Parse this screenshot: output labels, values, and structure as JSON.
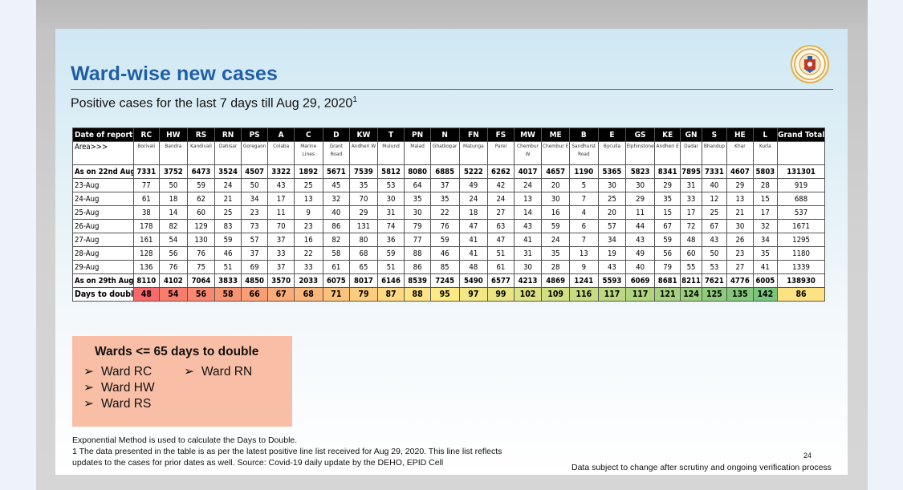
{
  "slide": {
    "title": "Ward-wise new cases",
    "subtitle": "Positive cases for the last 7 days till Aug 29, 2020",
    "subtitle_sup": "1"
  },
  "table": {
    "header_label": "Date of report",
    "area_label": "Area>>>",
    "wards": [
      "RC",
      "HW",
      "RS",
      "RN",
      "PS",
      "A",
      "C",
      "D",
      "KW",
      "T",
      "PN",
      "N",
      "FN",
      "FS",
      "MW",
      "ME",
      "B",
      "E",
      "GS",
      "KE",
      "GN",
      "S",
      "HE",
      "L"
    ],
    "total_label": "Grand Total",
    "areas": [
      "Borivali",
      "Bandra",
      "Kandivali",
      "Dahisar",
      "Goregaon",
      "Colaba",
      "Marine Lines",
      "Grant Road",
      "Andheri W",
      "Mulund",
      "Malad",
      "Ghatkopar",
      "Matunga",
      "Parel",
      "Chembur W",
      "Chembur E",
      "Sandhurst Road",
      "Byculla",
      "Elphinstone",
      "Andheri E",
      "Dadar",
      "Bhandup",
      "Khar",
      "Kurla"
    ],
    "rows": [
      {
        "label": "As on 22nd Aug",
        "bold": true,
        "values": [
          "7331",
          "3752",
          "6473",
          "3524",
          "4507",
          "3322",
          "1892",
          "5671",
          "7539",
          "5812",
          "8080",
          "6885",
          "5222",
          "6262",
          "4017",
          "4657",
          "1190",
          "5365",
          "5823",
          "8341",
          "7895",
          "7331",
          "4607",
          "5803"
        ],
        "total": "131301"
      },
      {
        "label": "23-Aug",
        "bold": false,
        "values": [
          "77",
          "50",
          "59",
          "24",
          "50",
          "43",
          "25",
          "45",
          "35",
          "53",
          "64",
          "37",
          "49",
          "42",
          "24",
          "20",
          "5",
          "30",
          "30",
          "29",
          "31",
          "40",
          "29",
          "28"
        ],
        "total": "919"
      },
      {
        "label": "24-Aug",
        "bold": false,
        "values": [
          "61",
          "18",
          "62",
          "21",
          "34",
          "17",
          "13",
          "32",
          "70",
          "30",
          "35",
          "35",
          "24",
          "24",
          "13",
          "30",
          "7",
          "25",
          "29",
          "35",
          "33",
          "12",
          "13",
          "15"
        ],
        "total": "688"
      },
      {
        "label": "25-Aug",
        "bold": false,
        "values": [
          "38",
          "14",
          "60",
          "25",
          "23",
          "11",
          "9",
          "40",
          "29",
          "31",
          "30",
          "22",
          "18",
          "27",
          "14",
          "16",
          "4",
          "20",
          "11",
          "15",
          "17",
          "25",
          "21",
          "17"
        ],
        "total": "537"
      },
      {
        "label": "26-Aug",
        "bold": false,
        "values": [
          "178",
          "82",
          "129",
          "83",
          "73",
          "70",
          "23",
          "86",
          "131",
          "74",
          "79",
          "76",
          "47",
          "63",
          "43",
          "59",
          "6",
          "57",
          "44",
          "67",
          "72",
          "67",
          "30",
          "32"
        ],
        "total": "1671"
      },
      {
        "label": "27-Aug",
        "bold": false,
        "values": [
          "161",
          "54",
          "130",
          "59",
          "57",
          "37",
          "16",
          "82",
          "80",
          "36",
          "77",
          "59",
          "41",
          "47",
          "41",
          "24",
          "7",
          "34",
          "43",
          "59",
          "48",
          "43",
          "26",
          "34"
        ],
        "total": "1295"
      },
      {
        "label": "28-Aug",
        "bold": false,
        "values": [
          "128",
          "56",
          "76",
          "46",
          "37",
          "33",
          "22",
          "58",
          "68",
          "59",
          "88",
          "46",
          "41",
          "51",
          "31",
          "35",
          "13",
          "19",
          "49",
          "56",
          "60",
          "50",
          "23",
          "35"
        ],
        "total": "1180"
      },
      {
        "label": "29-Aug",
        "bold": false,
        "values": [
          "136",
          "76",
          "75",
          "51",
          "69",
          "37",
          "33",
          "61",
          "65",
          "51",
          "86",
          "85",
          "48",
          "61",
          "30",
          "28",
          "9",
          "43",
          "40",
          "79",
          "55",
          "53",
          "27",
          "41"
        ],
        "total": "1339"
      },
      {
        "label": "As on 29th Aug",
        "bold": true,
        "values": [
          "8110",
          "4102",
          "7064",
          "3833",
          "4850",
          "3570",
          "2033",
          "6075",
          "8017",
          "6146",
          "8539",
          "7245",
          "5490",
          "6577",
          "4213",
          "4869",
          "1241",
          "5593",
          "6069",
          "8681",
          "8211",
          "7621",
          "4776",
          "6005"
        ],
        "total": "138930"
      }
    ],
    "days_row": {
      "label": "Days to double",
      "values": [
        "48",
        "54",
        "56",
        "58",
        "66",
        "67",
        "68",
        "71",
        "79",
        "87",
        "88",
        "95",
        "97",
        "99",
        "102",
        "109",
        "116",
        "117",
        "117",
        "121",
        "124",
        "125",
        "135",
        "142"
      ],
      "total": "86",
      "colors": [
        "#f8696b",
        "#f87d6d",
        "#f98870",
        "#f99472",
        "#fa9f75",
        "#fbab77",
        "#fbb67a",
        "#fcc27c",
        "#fdcd7e",
        "#fed981",
        "#fee483",
        "#ffeb84",
        "#f4e884",
        "#e9e583",
        "#dde282",
        "#d2df82",
        "#c7db81",
        "#bcd880",
        "#b1d57f",
        "#a6d27f",
        "#9bcf7e",
        "#90cb7d",
        "#85c87c",
        "#7ac57c"
      ],
      "total_color": "#fde283"
    }
  },
  "wards_box": {
    "title": "Wards <= 65 days to double",
    "bullet": "➢",
    "col1": [
      "Ward RC",
      "Ward HW",
      "Ward RS"
    ],
    "col2": [
      "Ward RN"
    ]
  },
  "footnotes": {
    "line1": "Exponential Method is used to calculate the Days to Double.",
    "line2": "1 The data presented in the table is as per the latest positive line list received for Aug 29, 2020. This line list reflects",
    "line3": "updates to the cases for prior dates as well. Source: Covid-19 daily update by the DEHO, EPID Cell",
    "page_number": "24",
    "disclaimer": "Data subject to change after scrutiny and ongoing verification process"
  }
}
